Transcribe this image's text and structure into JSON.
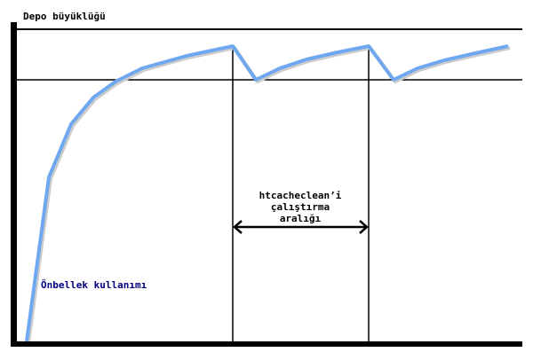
{
  "diagram": {
    "y_axis_label": "Depo büyüklüğü",
    "curve_label": "Önbellek kullanımı",
    "interval_label": [
      "htcacheclean’i",
      "çalıştırma",
      "aralığı"
    ],
    "colors": {
      "curve": "#6fa8f0",
      "curve_label": "#000080",
      "lines": "#000000"
    }
  }
}
